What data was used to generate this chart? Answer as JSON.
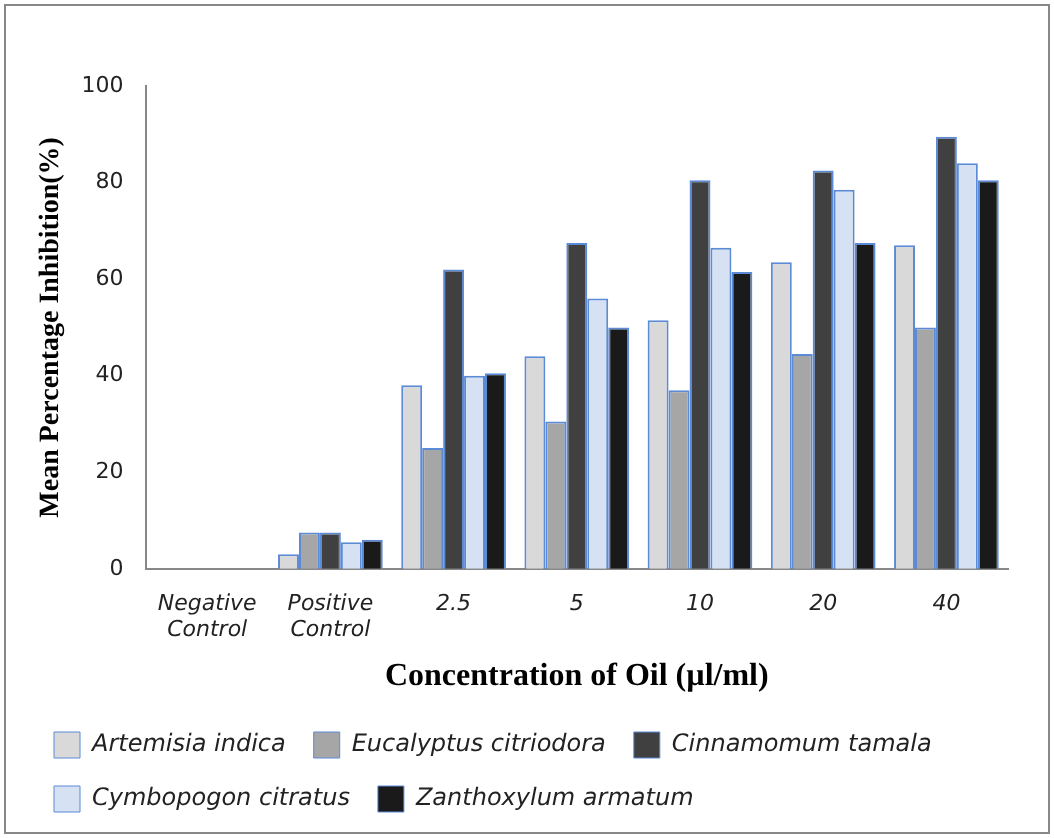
{
  "chart_data": {
    "type": "bar",
    "xlabel": "Concentration of Oil (µl/ml)",
    "ylabel": "Mean Percentage Inhibition(%)",
    "categories": [
      "Negative Control",
      "Positive Control",
      "2.5",
      "5",
      "10",
      "20",
      "40"
    ],
    "series": [
      {
        "name": "Artemisia indica",
        "color": "#d9d9d9",
        "values": [
          0,
          3,
          38,
          44,
          51.5,
          63.5,
          67
        ]
      },
      {
        "name": "Eucalyptus citriodora",
        "color": "#a6a6a6",
        "values": [
          0,
          7.5,
          25,
          30.5,
          37,
          44.5,
          50
        ]
      },
      {
        "name": "Cinnamomum tamala",
        "color": "#404040",
        "values": [
          0,
          7.5,
          62,
          67.5,
          80.5,
          82.5,
          89.5
        ]
      },
      {
        "name": "Cymbopogon citratus",
        "color": "#d6e2f3",
        "values": [
          0,
          5.5,
          40,
          56,
          66.5,
          78.5,
          84
        ]
      },
      {
        "name": "Zanthoxylum armatum",
        "color": "#1a1a1a",
        "values": [
          0,
          6,
          40.5,
          50,
          61.5,
          67.5,
          80.5
        ]
      }
    ],
    "ylim": [
      0,
      100
    ],
    "yticks": [
      0,
      20,
      40,
      60,
      80,
      100
    ],
    "grid": false,
    "legend": "bottom"
  }
}
